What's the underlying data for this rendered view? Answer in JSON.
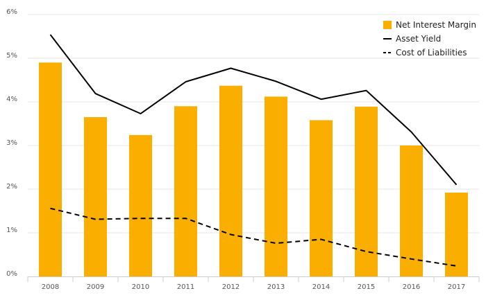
{
  "chart_data": {
    "type": "bar",
    "categories": [
      "2008",
      "2009",
      "2010",
      "2011",
      "2012",
      "2013",
      "2014",
      "2015",
      "2016",
      "2017"
    ],
    "series": [
      {
        "name": "Net Interest Margin",
        "kind": "bar",
        "color": "#F9AE00",
        "values": [
          4.9,
          3.65,
          3.24,
          3.9,
          4.37,
          4.12,
          3.58,
          3.89,
          3.0,
          1.92
        ]
      },
      {
        "name": "Asset Yield",
        "kind": "line",
        "style": "solid",
        "color": "#000000",
        "values": [
          5.54,
          4.19,
          3.73,
          4.46,
          4.77,
          4.47,
          4.06,
          4.26,
          3.31,
          2.1
        ]
      },
      {
        "name": "Cost of Liabilities",
        "kind": "line",
        "style": "dashed",
        "color": "#000000",
        "values": [
          1.56,
          1.31,
          1.33,
          1.33,
          0.96,
          0.76,
          0.85,
          0.57,
          0.4,
          0.24
        ]
      }
    ],
    "ylim": [
      0,
      6
    ],
    "yticks": [
      0,
      1,
      2,
      3,
      4,
      5,
      6
    ],
    "ytick_labels": [
      "0%",
      "1%",
      "2%",
      "3%",
      "4%",
      "5%",
      "6%"
    ],
    "grid": true,
    "legend_position": "top-right",
    "title": "",
    "xlabel": "",
    "ylabel": ""
  }
}
